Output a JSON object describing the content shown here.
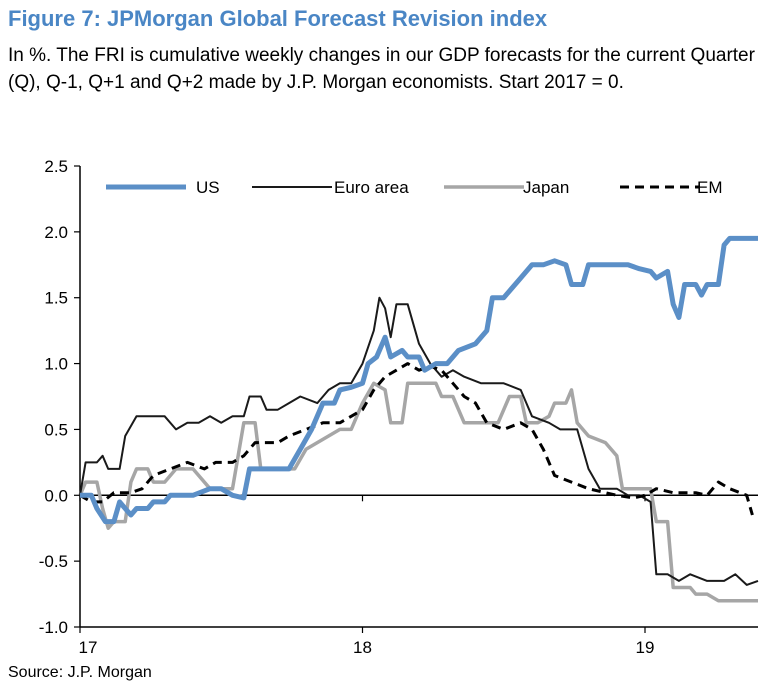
{
  "figure": {
    "title": "Figure 7:  JPMorgan Global Forecast Revision index",
    "subtitle": "In %. The FRI is cumulative weekly changes in our GDP forecasts for the current Quarter (Q), Q-1, Q+1 and Q+2 made by J.P. Morgan economists. Start 2017 = 0.",
    "source": "Source: J.P. Morgan"
  },
  "chart_data": {
    "type": "line",
    "title": "Figure 7:  JPMorgan Global Forecast Revision index",
    "ylabel": "",
    "xlabel": "",
    "xlim": [
      2017.0,
      2019.4
    ],
    "ylim": [
      -1.0,
      2.5
    ],
    "yticks": [
      "2.5",
      "2.0",
      "1.5",
      "1.0",
      "0.5",
      "0.0",
      "-0.5",
      "-1.0"
    ],
    "xticks": [
      {
        "value": 2017,
        "label": "17"
      },
      {
        "value": 2018,
        "label": "18"
      },
      {
        "value": 2019,
        "label": "19"
      }
    ],
    "legend_position": "top",
    "zero_line": true,
    "series": [
      {
        "name": "US",
        "color": "#5b8fc7",
        "style": "thick",
        "points": [
          [
            2017.0,
            0.0
          ],
          [
            2017.04,
            0.0
          ],
          [
            2017.06,
            -0.1
          ],
          [
            2017.09,
            -0.2
          ],
          [
            2017.12,
            -0.2
          ],
          [
            2017.14,
            -0.05
          ],
          [
            2017.16,
            -0.1
          ],
          [
            2017.18,
            -0.15
          ],
          [
            2017.2,
            -0.1
          ],
          [
            2017.24,
            -0.1
          ],
          [
            2017.26,
            -0.05
          ],
          [
            2017.3,
            -0.05
          ],
          [
            2017.32,
            0.0
          ],
          [
            2017.4,
            0.0
          ],
          [
            2017.46,
            0.05
          ],
          [
            2017.5,
            0.05
          ],
          [
            2017.54,
            0.0
          ],
          [
            2017.58,
            -0.02
          ],
          [
            2017.6,
            0.2
          ],
          [
            2017.66,
            0.2
          ],
          [
            2017.74,
            0.2
          ],
          [
            2017.78,
            0.35
          ],
          [
            2017.82,
            0.5
          ],
          [
            2017.86,
            0.7
          ],
          [
            2017.9,
            0.7
          ],
          [
            2017.92,
            0.8
          ],
          [
            2017.96,
            0.82
          ],
          [
            2018.0,
            0.85
          ],
          [
            2018.02,
            1.0
          ],
          [
            2018.05,
            1.05
          ],
          [
            2018.08,
            1.2
          ],
          [
            2018.1,
            1.05
          ],
          [
            2018.14,
            1.1
          ],
          [
            2018.16,
            1.05
          ],
          [
            2018.2,
            1.05
          ],
          [
            2018.22,
            0.95
          ],
          [
            2018.26,
            1.0
          ],
          [
            2018.3,
            1.0
          ],
          [
            2018.34,
            1.1
          ],
          [
            2018.4,
            1.15
          ],
          [
            2018.44,
            1.25
          ],
          [
            2018.46,
            1.5
          ],
          [
            2018.5,
            1.5
          ],
          [
            2018.52,
            1.55
          ],
          [
            2018.56,
            1.65
          ],
          [
            2018.6,
            1.75
          ],
          [
            2018.64,
            1.75
          ],
          [
            2018.68,
            1.78
          ],
          [
            2018.72,
            1.75
          ],
          [
            2018.74,
            1.6
          ],
          [
            2018.78,
            1.6
          ],
          [
            2018.8,
            1.75
          ],
          [
            2018.86,
            1.75
          ],
          [
            2018.94,
            1.75
          ],
          [
            2018.98,
            1.72
          ],
          [
            2019.02,
            1.7
          ],
          [
            2019.04,
            1.65
          ],
          [
            2019.08,
            1.7
          ],
          [
            2019.1,
            1.45
          ],
          [
            2019.12,
            1.35
          ],
          [
            2019.14,
            1.6
          ],
          [
            2019.18,
            1.6
          ],
          [
            2019.2,
            1.52
          ],
          [
            2019.22,
            1.6
          ],
          [
            2019.26,
            1.6
          ],
          [
            2019.28,
            1.9
          ],
          [
            2019.3,
            1.95
          ],
          [
            2019.4,
            1.95
          ]
        ]
      },
      {
        "name": "Euro area",
        "color": "#1a1a1a",
        "style": "thin",
        "points": [
          [
            2017.0,
            0.0
          ],
          [
            2017.02,
            0.25
          ],
          [
            2017.06,
            0.25
          ],
          [
            2017.08,
            0.3
          ],
          [
            2017.1,
            0.2
          ],
          [
            2017.14,
            0.2
          ],
          [
            2017.16,
            0.45
          ],
          [
            2017.2,
            0.6
          ],
          [
            2017.3,
            0.6
          ],
          [
            2017.34,
            0.5
          ],
          [
            2017.38,
            0.55
          ],
          [
            2017.42,
            0.55
          ],
          [
            2017.46,
            0.6
          ],
          [
            2017.5,
            0.55
          ],
          [
            2017.54,
            0.6
          ],
          [
            2017.58,
            0.6
          ],
          [
            2017.6,
            0.75
          ],
          [
            2017.64,
            0.75
          ],
          [
            2017.66,
            0.65
          ],
          [
            2017.7,
            0.65
          ],
          [
            2017.74,
            0.7
          ],
          [
            2017.78,
            0.75
          ],
          [
            2017.84,
            0.7
          ],
          [
            2017.88,
            0.8
          ],
          [
            2017.92,
            0.85
          ],
          [
            2017.96,
            0.85
          ],
          [
            2018.0,
            1.0
          ],
          [
            2018.04,
            1.25
          ],
          [
            2018.06,
            1.5
          ],
          [
            2018.08,
            1.42
          ],
          [
            2018.1,
            1.2
          ],
          [
            2018.12,
            1.45
          ],
          [
            2018.16,
            1.45
          ],
          [
            2018.2,
            1.15
          ],
          [
            2018.24,
            1.0
          ],
          [
            2018.28,
            0.9
          ],
          [
            2018.32,
            0.95
          ],
          [
            2018.36,
            0.9
          ],
          [
            2018.42,
            0.85
          ],
          [
            2018.5,
            0.85
          ],
          [
            2018.56,
            0.8
          ],
          [
            2018.6,
            0.6
          ],
          [
            2018.66,
            0.55
          ],
          [
            2018.7,
            0.5
          ],
          [
            2018.76,
            0.5
          ],
          [
            2018.8,
            0.2
          ],
          [
            2018.84,
            0.05
          ],
          [
            2018.9,
            0.05
          ],
          [
            2018.94,
            0.0
          ],
          [
            2018.98,
            0.0
          ],
          [
            2019.02,
            -0.05
          ],
          [
            2019.04,
            -0.6
          ],
          [
            2019.08,
            -0.6
          ],
          [
            2019.12,
            -0.65
          ],
          [
            2019.16,
            -0.6
          ],
          [
            2019.22,
            -0.65
          ],
          [
            2019.28,
            -0.65
          ],
          [
            2019.32,
            -0.6
          ],
          [
            2019.36,
            -0.68
          ],
          [
            2019.4,
            -0.65
          ]
        ]
      },
      {
        "name": "Japan",
        "color": "#a6a6a6",
        "style": "medium",
        "points": [
          [
            2017.0,
            0.0
          ],
          [
            2017.02,
            0.1
          ],
          [
            2017.06,
            0.1
          ],
          [
            2017.08,
            -0.1
          ],
          [
            2017.1,
            -0.25
          ],
          [
            2017.12,
            -0.2
          ],
          [
            2017.16,
            -0.2
          ],
          [
            2017.18,
            0.1
          ],
          [
            2017.2,
            0.2
          ],
          [
            2017.24,
            0.2
          ],
          [
            2017.26,
            0.1
          ],
          [
            2017.3,
            0.1
          ],
          [
            2017.34,
            0.2
          ],
          [
            2017.4,
            0.2
          ],
          [
            2017.46,
            0.05
          ],
          [
            2017.54,
            0.05
          ],
          [
            2017.58,
            0.55
          ],
          [
            2017.62,
            0.55
          ],
          [
            2017.64,
            0.2
          ],
          [
            2017.68,
            0.2
          ],
          [
            2017.76,
            0.2
          ],
          [
            2017.8,
            0.35
          ],
          [
            2017.84,
            0.4
          ],
          [
            2017.88,
            0.45
          ],
          [
            2017.92,
            0.5
          ],
          [
            2017.96,
            0.5
          ],
          [
            2018.0,
            0.7
          ],
          [
            2018.04,
            0.85
          ],
          [
            2018.08,
            0.8
          ],
          [
            2018.1,
            0.55
          ],
          [
            2018.14,
            0.55
          ],
          [
            2018.16,
            0.85
          ],
          [
            2018.22,
            0.85
          ],
          [
            2018.26,
            0.85
          ],
          [
            2018.28,
            0.75
          ],
          [
            2018.32,
            0.75
          ],
          [
            2018.36,
            0.55
          ],
          [
            2018.44,
            0.55
          ],
          [
            2018.48,
            0.55
          ],
          [
            2018.52,
            0.75
          ],
          [
            2018.56,
            0.75
          ],
          [
            2018.58,
            0.55
          ],
          [
            2018.62,
            0.55
          ],
          [
            2018.66,
            0.6
          ],
          [
            2018.68,
            0.7
          ],
          [
            2018.72,
            0.7
          ],
          [
            2018.74,
            0.8
          ],
          [
            2018.76,
            0.55
          ],
          [
            2018.8,
            0.45
          ],
          [
            2018.86,
            0.4
          ],
          [
            2018.9,
            0.3
          ],
          [
            2018.92,
            0.05
          ],
          [
            2018.98,
            0.05
          ],
          [
            2019.02,
            0.05
          ],
          [
            2019.04,
            -0.2
          ],
          [
            2019.08,
            -0.2
          ],
          [
            2019.1,
            -0.7
          ],
          [
            2019.16,
            -0.7
          ],
          [
            2019.18,
            -0.75
          ],
          [
            2019.22,
            -0.75
          ],
          [
            2019.26,
            -0.8
          ],
          [
            2019.4,
            -0.8
          ]
        ]
      },
      {
        "name": "EM",
        "color": "#000000",
        "style": "dashed",
        "points": [
          [
            2017.0,
            0.0
          ],
          [
            2017.04,
            -0.05
          ],
          [
            2017.08,
            -0.05
          ],
          [
            2017.12,
            0.02
          ],
          [
            2017.18,
            0.02
          ],
          [
            2017.22,
            0.05
          ],
          [
            2017.26,
            0.15
          ],
          [
            2017.32,
            0.2
          ],
          [
            2017.38,
            0.25
          ],
          [
            2017.44,
            0.2
          ],
          [
            2017.48,
            0.25
          ],
          [
            2017.54,
            0.25
          ],
          [
            2017.58,
            0.3
          ],
          [
            2017.62,
            0.4
          ],
          [
            2017.7,
            0.4
          ],
          [
            2017.74,
            0.45
          ],
          [
            2017.8,
            0.5
          ],
          [
            2017.86,
            0.55
          ],
          [
            2017.92,
            0.55
          ],
          [
            2017.96,
            0.6
          ],
          [
            2018.0,
            0.65
          ],
          [
            2018.04,
            0.8
          ],
          [
            2018.08,
            0.9
          ],
          [
            2018.12,
            0.95
          ],
          [
            2018.16,
            1.0
          ],
          [
            2018.2,
            0.95
          ],
          [
            2018.24,
            0.98
          ],
          [
            2018.28,
            0.95
          ],
          [
            2018.32,
            0.85
          ],
          [
            2018.36,
            0.75
          ],
          [
            2018.4,
            0.7
          ],
          [
            2018.44,
            0.55
          ],
          [
            2018.5,
            0.5
          ],
          [
            2018.56,
            0.55
          ],
          [
            2018.6,
            0.5
          ],
          [
            2018.64,
            0.35
          ],
          [
            2018.68,
            0.15
          ],
          [
            2018.74,
            0.1
          ],
          [
            2018.8,
            0.05
          ],
          [
            2018.86,
            0.02
          ],
          [
            2018.9,
            0.0
          ],
          [
            2018.96,
            -0.02
          ],
          [
            2019.0,
            0.0
          ],
          [
            2019.04,
            0.05
          ],
          [
            2019.1,
            0.02
          ],
          [
            2019.18,
            0.02
          ],
          [
            2019.22,
            0.0
          ],
          [
            2019.26,
            0.1
          ],
          [
            2019.3,
            0.05
          ],
          [
            2019.36,
            0.0
          ],
          [
            2019.38,
            -0.15
          ]
        ]
      }
    ]
  }
}
